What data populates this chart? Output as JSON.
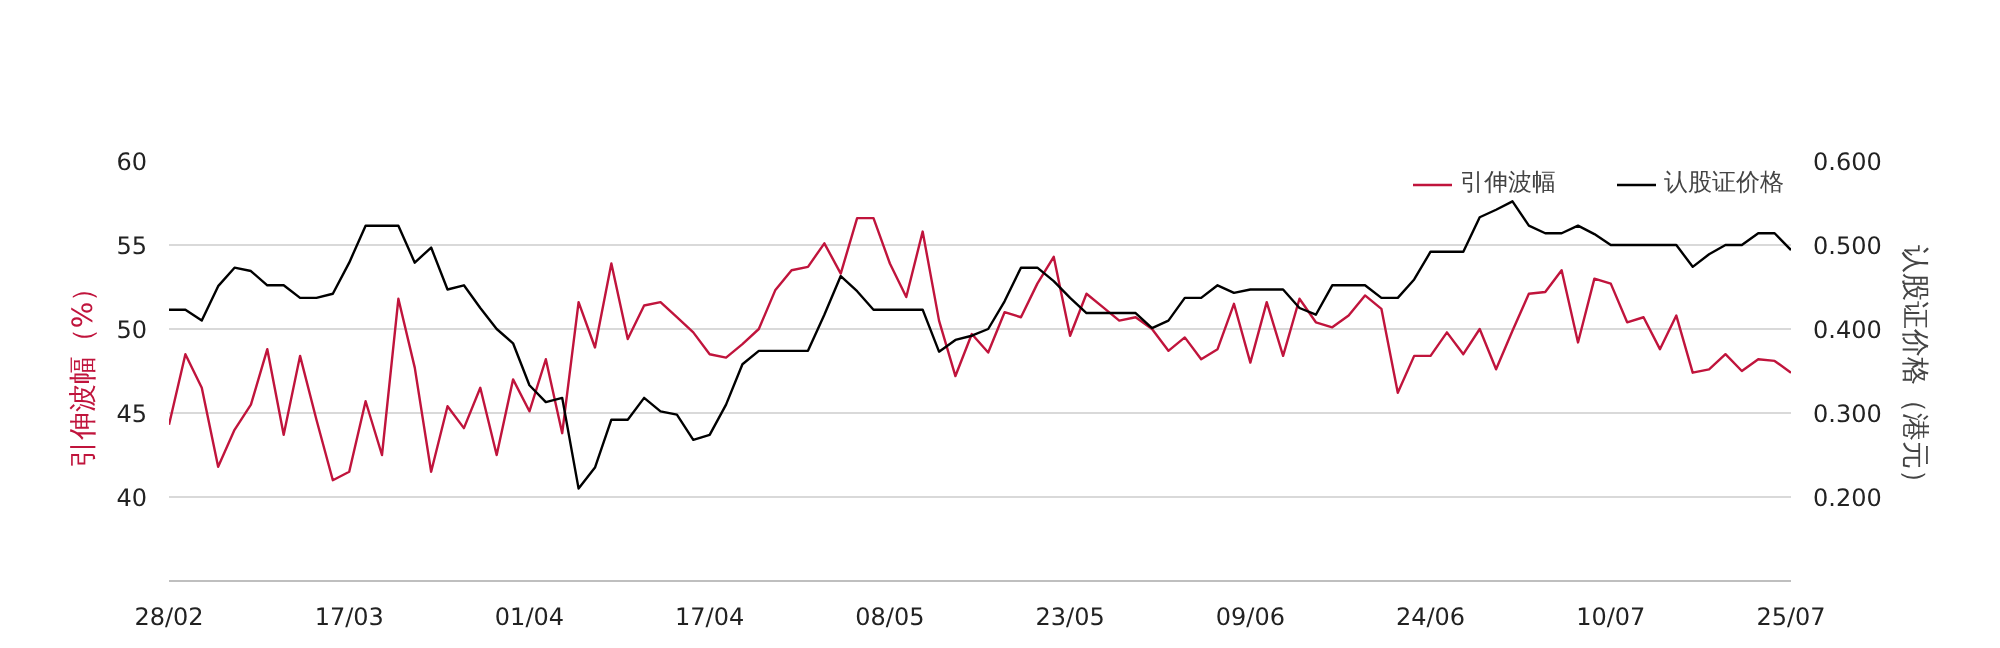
{
  "chart_data": {
    "type": "line",
    "xlabel": null,
    "ylabel": "引伸波幅（%）",
    "y2label": "认股证价格（港元）",
    "categories": [
      "28/02",
      null,
      null,
      null,
      null,
      null,
      null,
      null,
      null,
      null,
      null,
      "17/03",
      null,
      null,
      null,
      null,
      null,
      null,
      null,
      null,
      null,
      null,
      "01/04",
      null,
      null,
      null,
      null,
      null,
      null,
      null,
      null,
      null,
      null,
      "17/04",
      null,
      null,
      null,
      null,
      null,
      null,
      null,
      null,
      null,
      null,
      "08/05",
      null,
      null,
      null,
      null,
      null,
      null,
      null,
      null,
      null,
      null,
      "23/05",
      null,
      null,
      null,
      null,
      null,
      null,
      null,
      null,
      null,
      null,
      "09/06",
      null,
      null,
      null,
      null,
      null,
      null,
      null,
      null,
      null,
      null,
      "24/06",
      null,
      null,
      null,
      null,
      null,
      null,
      null,
      null,
      null,
      null,
      "10/07",
      null,
      null,
      null,
      null,
      null,
      null,
      null,
      null,
      null,
      null,
      "25/07"
    ],
    "series": [
      {
        "name": "引伸波幅",
        "color": "#c0143c",
        "values": [
          44.3,
          48.5,
          46.5,
          41.8,
          44.0,
          45.5,
          48.8,
          43.7,
          48.4,
          44.6,
          41.0,
          41.5,
          45.7,
          42.5,
          51.8,
          47.7,
          41.5,
          45.4,
          44.1,
          46.5,
          42.5,
          47.0,
          45.1,
          48.2,
          43.8,
          51.6,
          48.9,
          53.9,
          49.4,
          51.4,
          51.6,
          50.7,
          49.8,
          48.5,
          48.3,
          49.1,
          50.0,
          52.3,
          53.5,
          53.7,
          55.1,
          53.3,
          56.6,
          56.6,
          53.9,
          51.9,
          55.8,
          50.5,
          47.2,
          49.7,
          48.6,
          51.0,
          50.7,
          52.7,
          54.3,
          49.6,
          52.1,
          51.3,
          50.5,
          50.7,
          50.0,
          48.7,
          49.5,
          48.2,
          48.8,
          51.5,
          48.0,
          51.6,
          48.4,
          51.8,
          50.4,
          50.1,
          50.8,
          52.0,
          51.2,
          46.2,
          48.4,
          48.4,
          49.8,
          48.5,
          50.0,
          47.6,
          49.9,
          52.1,
          52.2,
          53.5,
          49.2,
          53.0,
          52.7,
          50.4,
          50.7,
          48.8,
          50.8,
          47.4,
          47.6,
          48.5,
          47.5,
          48.2,
          48.1,
          47.4
        ]
      },
      {
        "name": "认股证价格",
        "color": "#000000",
        "axis": "y2",
        "values": [
          0.423,
          0.423,
          0.41,
          0.451,
          0.473,
          0.469,
          0.452,
          0.452,
          0.437,
          0.437,
          0.442,
          0.479,
          0.523,
          0.523,
          0.523,
          0.479,
          0.497,
          0.447,
          0.452,
          0.425,
          0.4,
          0.383,
          0.333,
          0.313,
          0.318,
          0.21,
          0.235,
          0.292,
          0.292,
          0.318,
          0.302,
          0.298,
          0.268,
          0.274,
          0.31,
          0.358,
          0.374,
          0.374,
          0.374,
          0.374,
          0.417,
          0.463,
          0.445,
          0.423,
          0.423,
          0.423,
          0.423,
          0.373,
          0.387,
          0.392,
          0.4,
          0.433,
          0.473,
          0.473,
          0.457,
          0.437,
          0.419,
          0.419,
          0.419,
          0.419,
          0.401,
          0.41,
          0.437,
          0.437,
          0.452,
          0.443,
          0.447,
          0.447,
          0.447,
          0.425,
          0.417,
          0.452,
          0.452,
          0.452,
          0.437,
          0.437,
          0.459,
          0.492,
          0.492,
          0.492,
          0.533,
          0.542,
          0.552,
          0.523,
          0.514,
          0.514,
          0.523,
          0.513,
          0.5,
          0.5,
          0.5,
          0.5,
          0.5,
          0.474,
          0.489,
          0.5,
          0.5,
          0.514,
          0.514,
          0.494
        ]
      }
    ],
    "ylim": [
      35,
      60
    ],
    "yticks": [
      40,
      45,
      50,
      55,
      60
    ],
    "y2lim": [
      0.1,
      0.6
    ],
    "y2ticks": [
      {
        "value": 0.2,
        "label": "0.200"
      },
      {
        "value": 0.3,
        "label": "0.300"
      },
      {
        "value": 0.4,
        "label": "0.400"
      },
      {
        "value": 0.5,
        "label": "0.500"
      },
      {
        "value": 0.6,
        "label": "0.600"
      }
    ],
    "grid": "y",
    "legend": "top right",
    "marker": "none",
    "line_style": "solid"
  }
}
